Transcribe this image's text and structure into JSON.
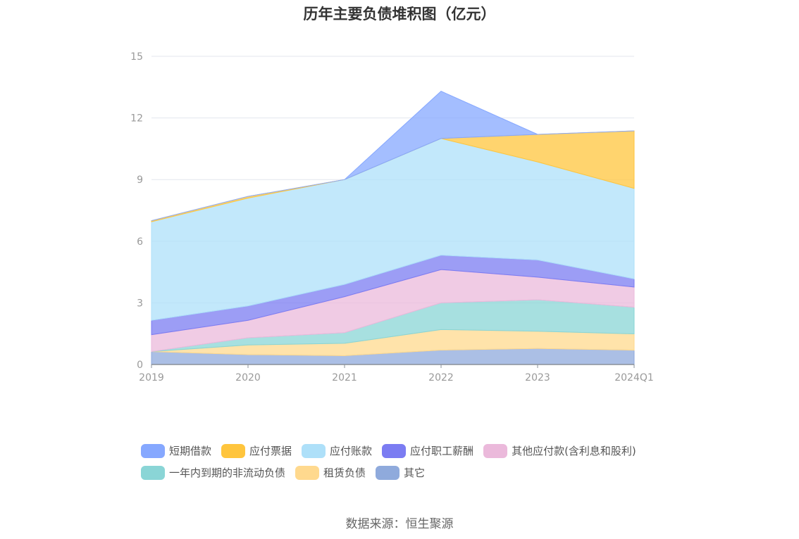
{
  "chart_data": {
    "type": "area",
    "stacked": true,
    "title": "历年主要负债堆积图（亿元）",
    "categories": [
      "2019",
      "2020",
      "2021",
      "2022",
      "2023",
      "2024Q1"
    ],
    "yticks": [
      "0",
      "3",
      "6",
      "9",
      "12",
      "15"
    ],
    "ylim": [
      0,
      15
    ],
    "grid": true,
    "legend_position": "bottom",
    "series": [
      {
        "name": "其它",
        "color": "#8faadc",
        "values": [
          0.63,
          0.48,
          0.43,
          0.7,
          0.78,
          0.7
        ]
      },
      {
        "name": "租赁负债",
        "color": "#ffd98e",
        "values": [
          0.0,
          0.47,
          0.6,
          1.0,
          0.84,
          0.79
        ]
      },
      {
        "name": "一年内到期的非流动负债",
        "color": "#8ad5d6",
        "values": [
          0.0,
          0.35,
          0.52,
          1.3,
          1.53,
          1.3
        ]
      },
      {
        "name": "其他应付款(含利息和股利)",
        "color": "#ebb9db",
        "values": [
          0.82,
          0.85,
          1.75,
          1.62,
          1.1,
          0.98
        ]
      },
      {
        "name": "应付职工薪酬",
        "color": "#7b7cf2",
        "values": [
          0.7,
          0.7,
          0.6,
          0.7,
          0.84,
          0.4
        ]
      },
      {
        "name": "应付账款",
        "color": "#aee0f9",
        "values": [
          4.8,
          5.25,
          5.1,
          5.68,
          4.77,
          4.4
        ]
      },
      {
        "name": "应付票据",
        "color": "#ffc53d",
        "values": [
          0.05,
          0.08,
          0.0,
          0.0,
          1.34,
          2.8
        ]
      },
      {
        "name": "短期借款",
        "color": "#86a8ff",
        "values": [
          0.0,
          0.0,
          0.0,
          2.3,
          0.0,
          0.0
        ]
      }
    ]
  },
  "legend_order": [
    "短期借款",
    "应付票据",
    "应付账款",
    "应付职工薪酬",
    "其他应付款(含利息和股利)",
    "一年内到期的非流动负债",
    "租赁负债",
    "其它"
  ],
  "source_note": "数据来源：恒生聚源"
}
